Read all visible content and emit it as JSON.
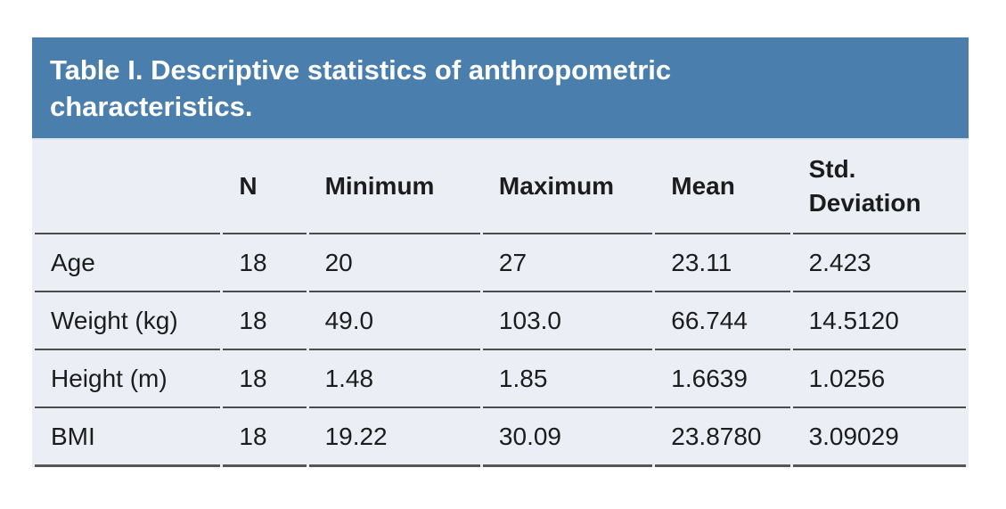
{
  "page": {
    "background_color": "#ffffff"
  },
  "table": {
    "title": "Table I. Descriptive statistics of anthropometric characteristics.",
    "colors": {
      "title_bar_bg": "#4a7ead",
      "title_text": "#ffffff",
      "body_bg": "#ebeff5",
      "rule": "#4c4c4c",
      "text": "#1c1c1c"
    },
    "columns": [
      "",
      "N",
      "Minimum",
      "Maximum",
      "Mean",
      "Std. Deviation"
    ],
    "rows": [
      {
        "label": "Age",
        "n": "18",
        "minimum": "20",
        "maximum": "27",
        "mean": "23.11",
        "std_deviation": "2.423"
      },
      {
        "label": "Weight (kg)",
        "n": "18",
        "minimum": "49.0",
        "maximum": "103.0",
        "mean": "66.744",
        "std_deviation": "14.5120"
      },
      {
        "label": "Height (m)",
        "n": "18",
        "minimum": "1.48",
        "maximum": "1.85",
        "mean": "1.6639",
        "std_deviation": "1.0256"
      },
      {
        "label": "BMI",
        "n": "18",
        "minimum": "19.22",
        "maximum": "30.09",
        "mean": "23.8780",
        "std_deviation": "3.09029"
      }
    ]
  }
}
